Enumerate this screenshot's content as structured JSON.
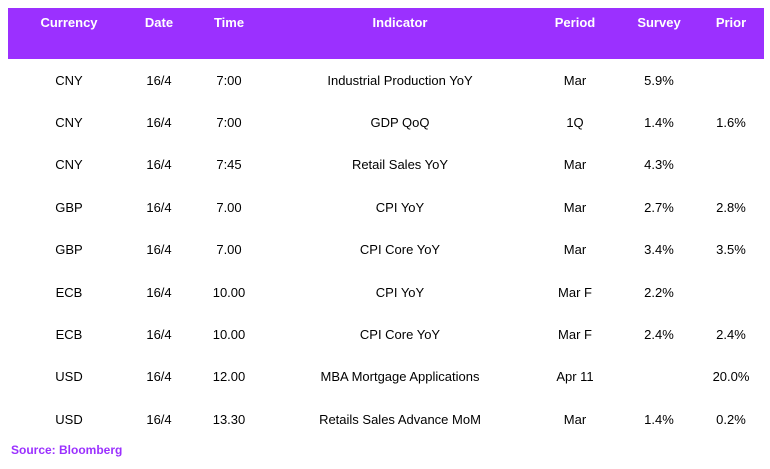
{
  "table": {
    "headers": [
      "Currency",
      "Date",
      "Time",
      "Indicator",
      "Period",
      "Survey",
      "Prior"
    ],
    "rows": [
      [
        "CNY",
        "16/4",
        "7:00",
        "Industrial Production YoY",
        "Mar",
        "5.9%",
        ""
      ],
      [
        "CNY",
        "16/4",
        "7:00",
        "GDP QoQ",
        "1Q",
        "1.4%",
        "1.6%"
      ],
      [
        "CNY",
        "16/4",
        "7:45",
        "Retail Sales YoY",
        "Mar",
        "4.3%",
        ""
      ],
      [
        "GBP",
        "16/4",
        "7.00",
        "CPI YoY",
        "Mar",
        "2.7%",
        "2.8%"
      ],
      [
        "GBP",
        "16/4",
        "7.00",
        "CPI Core YoY",
        "Mar",
        "3.4%",
        "3.5%"
      ],
      [
        "ECB",
        "16/4",
        "10.00",
        "CPI YoY",
        "Mar F",
        "2.2%",
        ""
      ],
      [
        "ECB",
        "16/4",
        "10.00",
        "CPI Core YoY",
        "Mar F",
        "2.4%",
        "2.4%"
      ],
      [
        "USD",
        "16/4",
        "12.00",
        "MBA Mortgage Applications",
        "Apr 11",
        "",
        "20.0%"
      ],
      [
        "USD",
        "16/4",
        "13.30",
        "Retails Sales Advance MoM",
        "Mar",
        "1.4%",
        "0.2%"
      ]
    ]
  },
  "footer": {
    "source": "Source: Bloomberg"
  },
  "colors": {
    "header_bg": "#9b30ff",
    "header_text": "#ffffff",
    "source_text": "#9b30ff"
  }
}
